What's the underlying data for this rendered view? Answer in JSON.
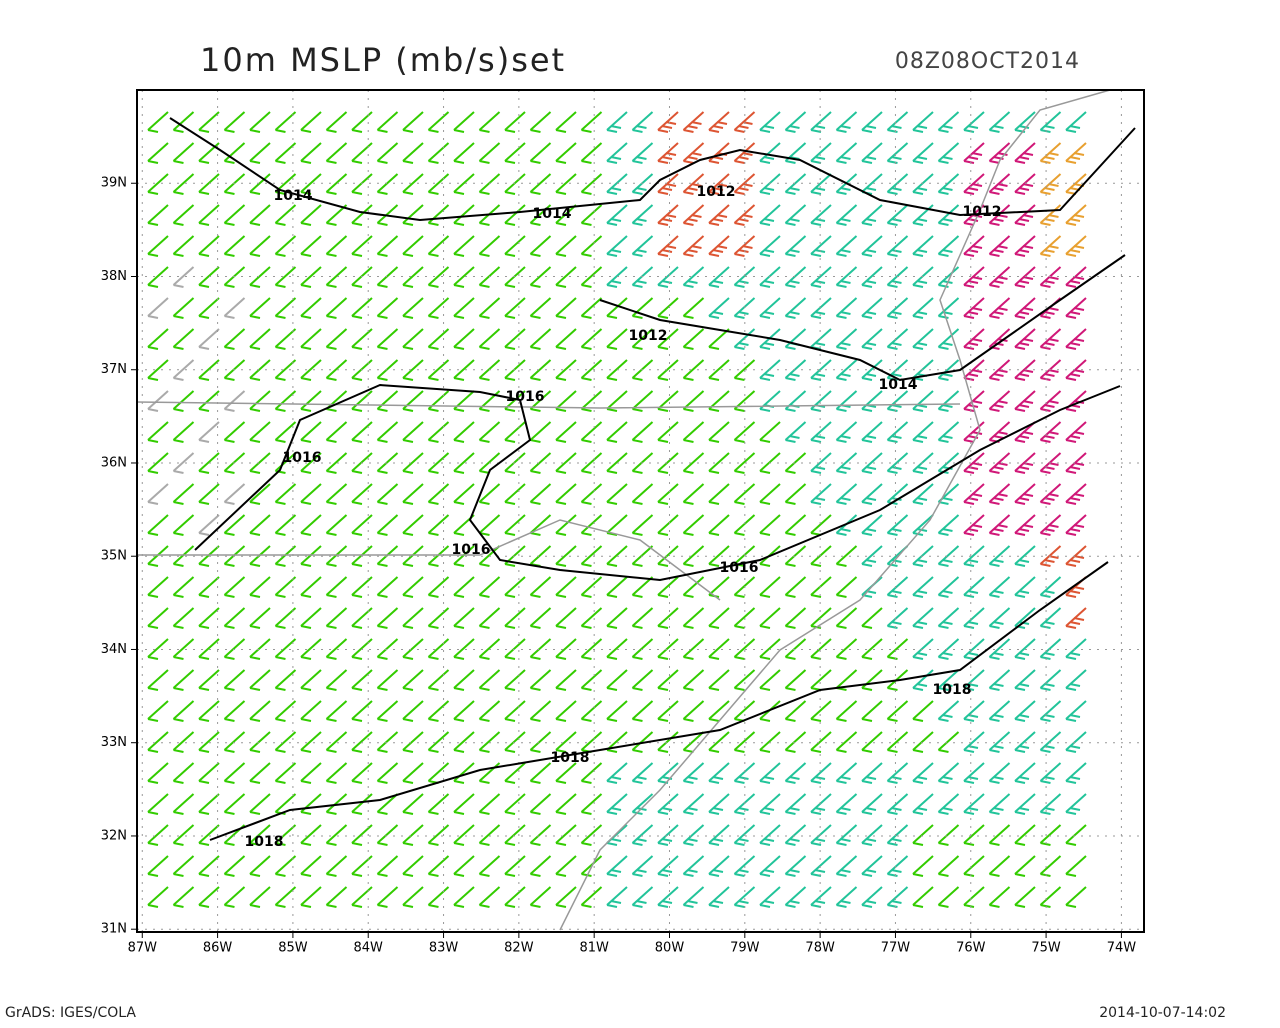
{
  "title": "10m MSLP (mb/s)set",
  "valid_time": "08Z08OCT2014",
  "map": {
    "xlim": [
      -87.07,
      -73.7
    ],
    "ylim": [
      30.97,
      40
    ],
    "xticks": [
      {
        "value": -87,
        "label": "87W"
      },
      {
        "value": -86,
        "label": "86W"
      },
      {
        "value": -85,
        "label": "85W"
      },
      {
        "value": -84,
        "label": "84W"
      },
      {
        "value": -83,
        "label": "83W"
      },
      {
        "value": -82,
        "label": "82W"
      },
      {
        "value": -81,
        "label": "81W"
      },
      {
        "value": -80,
        "label": "80W"
      },
      {
        "value": -79,
        "label": "79W"
      },
      {
        "value": -78,
        "label": "78W"
      },
      {
        "value": -77,
        "label": "77W"
      },
      {
        "value": -76,
        "label": "76W"
      },
      {
        "value": -75,
        "label": "75W"
      },
      {
        "value": -74,
        "label": "74W"
      }
    ],
    "yticks": [
      {
        "value": 31,
        "label": "31N"
      },
      {
        "value": 32,
        "label": "32N"
      },
      {
        "value": 33,
        "label": "33N"
      },
      {
        "value": 34,
        "label": "34N"
      },
      {
        "value": 35,
        "label": "35N"
      },
      {
        "value": 36,
        "label": "36N"
      },
      {
        "value": 37,
        "label": "37N"
      },
      {
        "value": 38,
        "label": "38N"
      },
      {
        "value": 39,
        "label": "39N"
      }
    ],
    "contour_labels": [
      "1014",
      "1014",
      "1012",
      "1012",
      "1012",
      "1014",
      "1016",
      "1016",
      "1016",
      "1016",
      "1018",
      "1018",
      "1018"
    ]
  },
  "footer": {
    "left": "GrADS: IGES/COLA",
    "right": "2014-10-07-14:02"
  }
}
